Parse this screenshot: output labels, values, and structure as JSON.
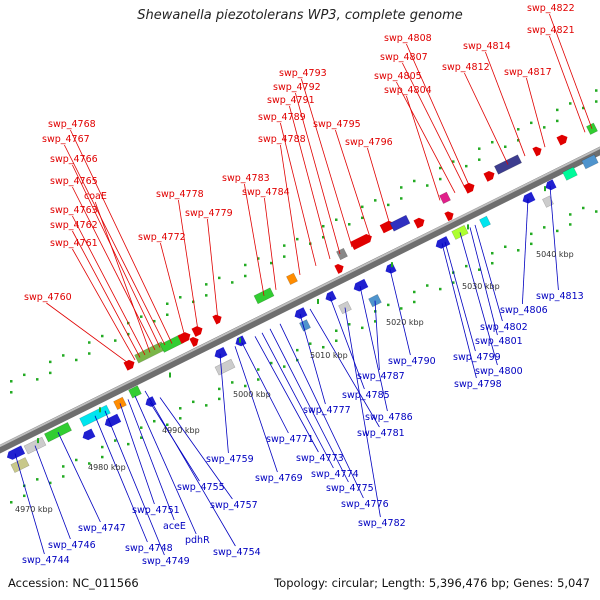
{
  "title": "Shewanella piezotolerans WP3, complete genome",
  "footer": {
    "accession": "Accession: NC_011566",
    "summary": "Topology: circular; Length: 5,396,476 bp; Genes: 5,047"
  },
  "ticks": [
    "4970 kbp",
    "4980 kbp",
    "4990 kbp",
    "5000 kbp",
    "5010 kbp",
    "5020 kbp",
    "5030 kbp",
    "5040 kbp"
  ],
  "forward_labels": [
    "swp_4760",
    "swp_4761",
    "swp_4762",
    "swp_4763",
    "coaE",
    "swp_4765",
    "swp_4766",
    "swp_4767",
    "swp_4768",
    "swp_4772",
    "swp_4778",
    "swp_4779",
    "swp_4783",
    "swp_4784",
    "swp_4788",
    "swp_4789",
    "swp_4791",
    "swp_4792",
    "swp_4793",
    "swp_4795",
    "swp_4796",
    "swp_4804",
    "swp_4805",
    "swp_4807",
    "swp_4808",
    "swp_4812",
    "swp_4814",
    "swp_4817",
    "swp_4821",
    "swp_4822"
  ],
  "reverse_labels": [
    "swp_4744",
    "swp_4746",
    "swp_4747",
    "swp_4748",
    "swp_4749",
    "swp_4751",
    "aceE",
    "pdhR",
    "swp_4754",
    "swp_4755",
    "swp_4757",
    "swp_4759",
    "swp_4769",
    "swp_4771",
    "swp_4773",
    "swp_4774",
    "swp_4775",
    "swp_4776",
    "swp_4777",
    "swp_4781",
    "swp_4782",
    "swp_4785",
    "swp_4786",
    "swp_4787",
    "swp_4790",
    "swp_4798",
    "swp_4799",
    "swp_4800",
    "swp_4801",
    "swp_4802",
    "swp_4806",
    "swp_4813"
  ]
}
